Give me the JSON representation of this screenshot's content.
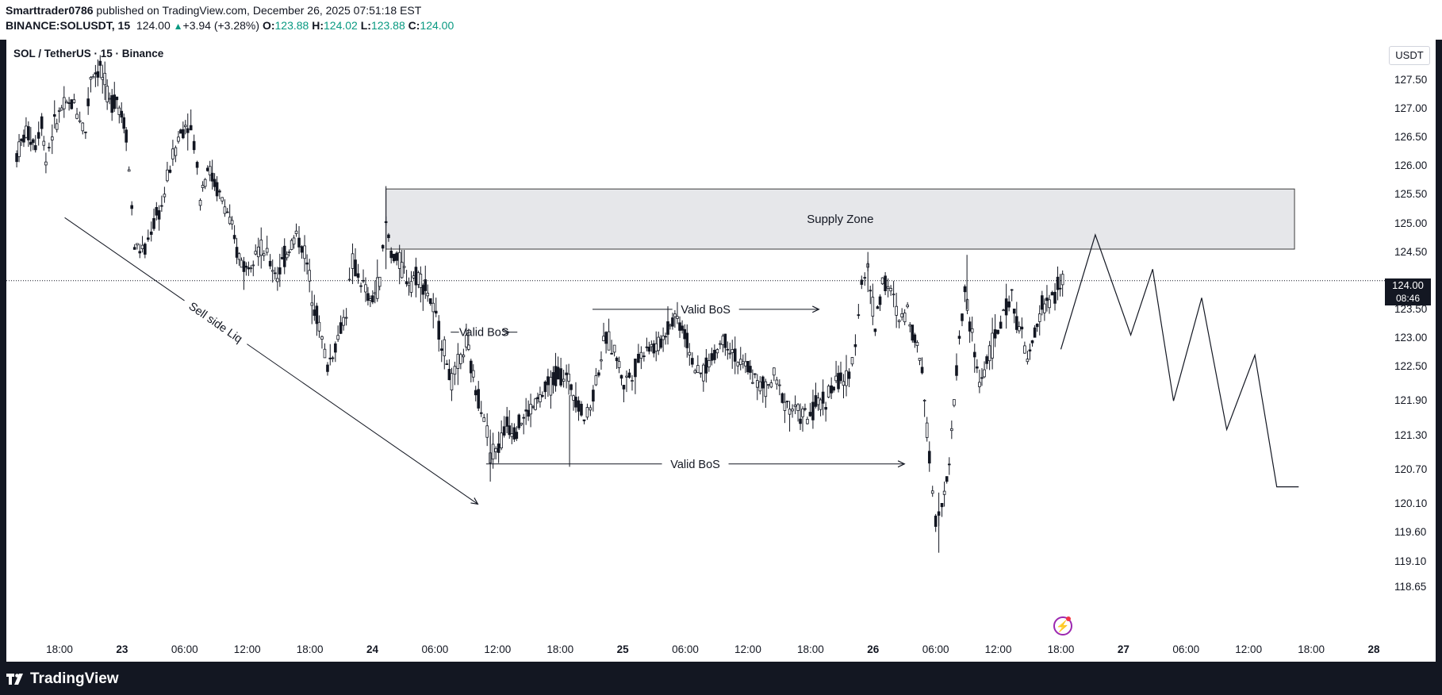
{
  "header": {
    "author": "Smarttrader0786",
    "published": "published on TradingView.com, December 26, 2025 07:51:18 EST",
    "symbol": "BINANCE:SOLUSDT, 15",
    "price": "124.00",
    "change": "+3.94 (+3.28%)",
    "o_label": "O:",
    "o_value": "123.88",
    "h_label": "H:",
    "h_value": "124.02",
    "l_label": "L:",
    "l_value": "123.88",
    "c_label": "C:",
    "c_value": "124.00"
  },
  "legend": {
    "title": "SOL / TetherUS · 15 · Binance"
  },
  "price_scale": {
    "currency": "USDT",
    "last_price": "124.00",
    "countdown": "08:46"
  },
  "footer": {
    "brand": "TradingView"
  },
  "colors": {
    "up": "#089981",
    "background": "#131722",
    "zone_fill": "#e6e7ea"
  },
  "icons": [
    "chart-flash-icon",
    "tradingview-logo-icon"
  ],
  "chart_data": {
    "type": "candlestick",
    "symbol": "SOLUSDT",
    "interval": "15",
    "ylim": [
      118.4,
      128.2
    ],
    "y_ticks": [
      {
        "value": 127.5,
        "label": "127.50"
      },
      {
        "value": 127.0,
        "label": "127.00"
      },
      {
        "value": 126.5,
        "label": "126.50"
      },
      {
        "value": 126.0,
        "label": "126.00"
      },
      {
        "value": 125.5,
        "label": "125.50"
      },
      {
        "value": 125.0,
        "label": "125.00"
      },
      {
        "value": 124.5,
        "label": "124.50"
      },
      {
        "value": 123.5,
        "label": "123.50"
      },
      {
        "value": 123.0,
        "label": "123.00"
      },
      {
        "value": 122.5,
        "label": "122.50"
      },
      {
        "value": 121.9,
        "label": "121.90"
      },
      {
        "value": 121.3,
        "label": "121.30"
      },
      {
        "value": 120.7,
        "label": "120.70"
      },
      {
        "value": 120.1,
        "label": "120.10"
      },
      {
        "value": 119.6,
        "label": "119.60"
      },
      {
        "value": 119.1,
        "label": "119.10"
      },
      {
        "value": 118.65,
        "label": "118.65"
      }
    ],
    "x_ticks": [
      {
        "hour": 18,
        "label": "18:00",
        "day": false
      },
      {
        "hour": 24,
        "label": "23",
        "day": true
      },
      {
        "hour": 30,
        "label": "06:00",
        "day": false
      },
      {
        "hour": 36,
        "label": "12:00",
        "day": false
      },
      {
        "hour": 42,
        "label": "18:00",
        "day": false
      },
      {
        "hour": 48,
        "label": "24",
        "day": true
      },
      {
        "hour": 54,
        "label": "06:00",
        "day": false
      },
      {
        "hour": 60,
        "label": "12:00",
        "day": false
      },
      {
        "hour": 66,
        "label": "18:00",
        "day": false
      },
      {
        "hour": 72,
        "label": "25",
        "day": true
      },
      {
        "hour": 78,
        "label": "06:00",
        "day": false
      },
      {
        "hour": 84,
        "label": "12:00",
        "day": false
      },
      {
        "hour": 90,
        "label": "18:00",
        "day": false
      },
      {
        "hour": 96,
        "label": "26",
        "day": true
      },
      {
        "hour": 102,
        "label": "06:00",
        "day": false
      },
      {
        "hour": 108,
        "label": "12:00",
        "day": false
      },
      {
        "hour": 114,
        "label": "18:00",
        "day": false
      },
      {
        "hour": 120,
        "label": "27",
        "day": true
      },
      {
        "hour": 126,
        "label": "06:00",
        "day": false
      },
      {
        "hour": 132,
        "label": "12:00",
        "day": false
      },
      {
        "hour": 138,
        "label": "18:00",
        "day": false
      },
      {
        "hour": 144,
        "label": "28",
        "day": true
      }
    ],
    "price_path": [
      [
        13.9,
        126.2
      ],
      [
        14.8,
        126.6
      ],
      [
        15.7,
        126.4
      ],
      [
        16.3,
        126.8
      ],
      [
        16.7,
        126.1
      ],
      [
        17.3,
        126.6
      ],
      [
        18.2,
        127.0
      ],
      [
        19.4,
        127.1
      ],
      [
        20.5,
        126.6
      ],
      [
        21.0,
        127.6
      ],
      [
        21.9,
        127.7
      ],
      [
        22.8,
        127.1
      ],
      [
        23.5,
        127.2
      ],
      [
        24.4,
        126.6
      ],
      [
        25.2,
        124.6
      ],
      [
        26.2,
        124.5
      ],
      [
        26.8,
        124.9
      ],
      [
        27.8,
        125.3
      ],
      [
        28.6,
        126.0
      ],
      [
        29.4,
        126.5
      ],
      [
        30.3,
        126.8
      ],
      [
        30.9,
        126.4
      ],
      [
        31.5,
        125.5
      ],
      [
        32.2,
        126.0
      ],
      [
        33.1,
        125.6
      ],
      [
        34.1,
        125.2
      ],
      [
        35.0,
        124.5
      ],
      [
        35.9,
        124.2
      ],
      [
        36.8,
        124.6
      ],
      [
        37.6,
        124.5
      ],
      [
        38.2,
        124.3
      ],
      [
        38.9,
        124.1
      ],
      [
        39.8,
        124.5
      ],
      [
        40.7,
        124.8
      ],
      [
        41.5,
        124.5
      ],
      [
        42.2,
        123.8
      ],
      [
        42.9,
        123.2
      ],
      [
        43.7,
        122.5
      ],
      [
        44.7,
        123.0
      ],
      [
        45.5,
        123.5
      ],
      [
        46.1,
        124.3
      ],
      [
        46.9,
        124.0
      ],
      [
        47.8,
        123.6
      ],
      [
        48.7,
        124.0
      ],
      [
        49.3,
        125.0
      ],
      [
        49.8,
        124.5
      ],
      [
        50.6,
        124.3
      ],
      [
        51.5,
        124.0
      ],
      [
        52.4,
        124.1
      ],
      [
        53.3,
        123.8
      ],
      [
        54.1,
        123.3
      ],
      [
        54.9,
        122.8
      ],
      [
        55.6,
        122.2
      ],
      [
        56.2,
        122.5
      ],
      [
        57.0,
        122.9
      ],
      [
        57.9,
        122.1
      ],
      [
        58.7,
        121.7
      ],
      [
        59.3,
        121.0
      ],
      [
        60.1,
        121.1
      ],
      [
        60.9,
        121.5
      ],
      [
        61.6,
        121.4
      ],
      [
        62.5,
        121.6
      ],
      [
        63.4,
        121.8
      ],
      [
        64.3,
        122.0
      ],
      [
        65.1,
        122.2
      ],
      [
        65.8,
        122.4
      ],
      [
        66.6,
        122.3
      ],
      [
        67.5,
        122.0
      ],
      [
        68.3,
        121.6
      ],
      [
        68.9,
        121.8
      ],
      [
        69.7,
        122.5
      ],
      [
        70.4,
        123.0
      ],
      [
        71.2,
        122.8
      ],
      [
        72.1,
        122.2
      ],
      [
        72.9,
        122.4
      ],
      [
        73.5,
        122.6
      ],
      [
        74.3,
        122.9
      ],
      [
        75.2,
        122.8
      ],
      [
        76.1,
        123.1
      ],
      [
        77.0,
        123.4
      ],
      [
        77.7,
        123.2
      ],
      [
        78.4,
        122.8
      ],
      [
        79.2,
        122.3
      ],
      [
        80.0,
        122.5
      ],
      [
        80.8,
        122.7
      ],
      [
        81.6,
        123.0
      ],
      [
        82.5,
        122.8
      ],
      [
        83.3,
        122.5
      ],
      [
        84.0,
        122.5
      ],
      [
        84.9,
        122.2
      ],
      [
        85.7,
        122.1
      ],
      [
        86.5,
        122.3
      ],
      [
        87.3,
        122.0
      ],
      [
        88.0,
        121.8
      ],
      [
        88.8,
        121.7
      ],
      [
        89.7,
        121.6
      ],
      [
        90.5,
        121.8
      ],
      [
        91.2,
        121.9
      ],
      [
        92.0,
        122.1
      ],
      [
        92.9,
        122.3
      ],
      [
        93.7,
        122.2
      ],
      [
        94.3,
        123.0
      ],
      [
        94.9,
        124.0
      ],
      [
        95.5,
        124.2
      ],
      [
        96.2,
        123.2
      ],
      [
        96.9,
        124.0
      ],
      [
        97.7,
        123.8
      ],
      [
        98.5,
        123.3
      ],
      [
        99.3,
        123.5
      ],
      [
        100.0,
        123.0
      ],
      [
        100.7,
        122.5
      ],
      [
        101.4,
        120.9
      ],
      [
        102.0,
        119.8
      ],
      [
        102.6,
        120.2
      ],
      [
        103.3,
        120.7
      ],
      [
        104.0,
        122.5
      ],
      [
        104.8,
        123.8
      ],
      [
        105.5,
        123.0
      ],
      [
        106.2,
        122.2
      ],
      [
        106.9,
        122.6
      ],
      [
        107.7,
        123.0
      ],
      [
        108.5,
        123.4
      ],
      [
        109.3,
        123.7
      ],
      [
        110.0,
        123.2
      ],
      [
        110.8,
        122.6
      ],
      [
        111.5,
        123.0
      ],
      [
        112.2,
        123.6
      ],
      [
        112.9,
        123.6
      ],
      [
        113.7,
        123.9
      ],
      [
        114.4,
        124.0
      ]
    ],
    "annotations": [
      {
        "label": "Supply Zone",
        "type": "zone",
        "x_from": 49.3,
        "x_to": 136.4,
        "y_from": 124.55,
        "y_to": 125.6
      },
      {
        "label": "Valid BoS",
        "type": "level",
        "x_from": 56.3,
        "x_to": 61.1,
        "y": 123.1
      },
      {
        "label": "Valid BoS",
        "type": "level",
        "x_from": 69.1,
        "x_to": 90.8,
        "y": 123.5
      },
      {
        "label": "Valid BoS",
        "type": "level",
        "x_from": 58.9,
        "x_to": 99.0,
        "y": 120.8
      },
      {
        "label": "Sell side Liq",
        "type": "trendline",
        "x_from": 18.5,
        "y_from": 125.1,
        "x_to": 58.1,
        "y_to": 120.1
      }
    ],
    "projection": {
      "x": [
        114.0,
        117.3,
        120.7,
        122.8,
        124.8,
        127.5,
        129.9,
        132.6,
        134.7,
        136.8
      ],
      "y": [
        122.8,
        124.8,
        123.05,
        124.2,
        121.9,
        123.7,
        121.4,
        122.7,
        120.4,
        120.4
      ]
    },
    "last_price": 124.0
  }
}
